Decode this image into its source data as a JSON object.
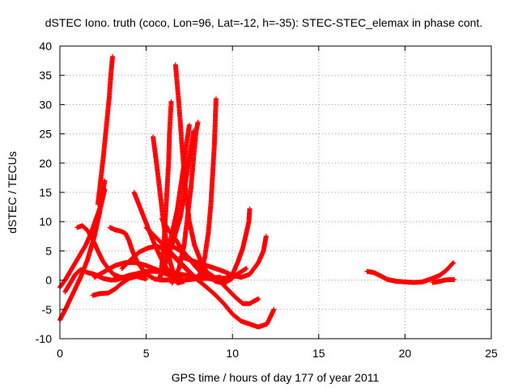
{
  "chart_data": {
    "type": "scatter",
    "title": "dSTEC Iono. truth (coco, Lon=96, Lat=-12, h=-35): STEC-STEC_elemax in phase cont.",
    "xlabel": "GPS time / hours of day 177 of year 2011",
    "ylabel": "dSTEC  / TECUs",
    "xlim": [
      0,
      25
    ],
    "ylim": [
      -10,
      40
    ],
    "xticks": [
      0,
      5,
      10,
      15,
      20,
      25
    ],
    "yticks": [
      -10,
      -5,
      0,
      5,
      10,
      15,
      20,
      25,
      30,
      35,
      40
    ],
    "grid": true,
    "marker": "+",
    "color": "#ff0000",
    "series": [
      {
        "points": [
          [
            0.0,
            -6.8
          ],
          [
            0.4,
            -4.5
          ],
          [
            0.8,
            -2.0
          ],
          [
            1.2,
            0.5
          ],
          [
            1.6,
            3.5
          ],
          [
            2.0,
            7.5
          ],
          [
            2.3,
            11.5
          ],
          [
            2.6,
            17.0
          ]
        ]
      },
      {
        "points": [
          [
            2.2,
            13.0
          ],
          [
            2.4,
            18.0
          ],
          [
            2.55,
            22.0
          ],
          [
            2.7,
            26.5
          ],
          [
            2.85,
            31.0
          ],
          [
            2.95,
            35.0
          ],
          [
            3.05,
            38.2
          ]
        ]
      },
      {
        "points": [
          [
            0.0,
            -1.2
          ],
          [
            0.3,
            0.0
          ],
          [
            0.6,
            1.5
          ],
          [
            0.9,
            3.0
          ],
          [
            1.2,
            4.5
          ],
          [
            1.5,
            6.0
          ],
          [
            1.8,
            8.0
          ],
          [
            2.1,
            10.5
          ],
          [
            2.4,
            13.0
          ],
          [
            2.6,
            15.5
          ]
        ]
      },
      {
        "points": [
          [
            1.0,
            9.0
          ],
          [
            1.3,
            9.3
          ],
          [
            1.6,
            8.5
          ],
          [
            1.9,
            7.0
          ],
          [
            2.2,
            5.0
          ],
          [
            2.5,
            3.2
          ],
          [
            2.8,
            2.0
          ],
          [
            3.1,
            1.0
          ],
          [
            3.5,
            0.5
          ],
          [
            4.0,
            0.5
          ]
        ]
      },
      {
        "points": [
          [
            0.3,
            -2.0
          ],
          [
            0.6,
            -0.5
          ],
          [
            0.9,
            1.0
          ],
          [
            1.2,
            1.8
          ],
          [
            1.6,
            1.3
          ],
          [
            2.0,
            1.0
          ],
          [
            2.5,
            0.3
          ],
          [
            3.0,
            0.0
          ],
          [
            3.5,
            0.3
          ],
          [
            4.0,
            0.8
          ],
          [
            4.5,
            0.6
          ],
          [
            5.0,
            0.2
          ]
        ]
      },
      {
        "points": [
          [
            1.9,
            -2.6
          ],
          [
            2.3,
            -2.3
          ],
          [
            2.8,
            -2.2
          ],
          [
            3.2,
            -1.5
          ],
          [
            3.6,
            -0.5
          ],
          [
            4.0,
            0.3
          ],
          [
            4.5,
            0.7
          ],
          [
            5.0,
            0.8
          ]
        ]
      },
      {
        "points": [
          [
            2.0,
            0.5
          ],
          [
            2.6,
            1.5
          ],
          [
            3.2,
            2.5
          ],
          [
            3.8,
            3.0
          ],
          [
            4.4,
            3.0
          ],
          [
            5.0,
            2.5
          ],
          [
            5.6,
            1.8
          ],
          [
            6.2,
            1.0
          ],
          [
            6.8,
            0.5
          ]
        ]
      },
      {
        "points": [
          [
            2.9,
            9.0
          ],
          [
            3.2,
            8.6
          ],
          [
            3.5,
            8.4
          ],
          [
            3.8,
            8.0
          ],
          [
            4.0,
            6.8
          ],
          [
            4.2,
            5.0
          ],
          [
            4.5,
            3.0
          ],
          [
            5.0,
            1.0
          ],
          [
            5.5,
            0.2
          ],
          [
            6.0,
            0.0
          ],
          [
            7.0,
            0.2
          ]
        ]
      },
      {
        "points": [
          [
            4.3,
            15.0
          ],
          [
            4.7,
            12.0
          ],
          [
            5.1,
            9.0
          ],
          [
            5.5,
            6.0
          ],
          [
            5.9,
            3.5
          ],
          [
            6.3,
            1.5
          ],
          [
            6.7,
            0.5
          ],
          [
            7.2,
            0.0
          ],
          [
            7.8,
            0.2
          ],
          [
            8.5,
            0.3
          ],
          [
            9.3,
            0.5
          ]
        ]
      },
      {
        "points": [
          [
            3.6,
            2.0
          ],
          [
            4.1,
            3.5
          ],
          [
            4.6,
            4.8
          ],
          [
            5.1,
            5.5
          ],
          [
            5.6,
            5.8
          ],
          [
            6.1,
            5.3
          ],
          [
            6.6,
            4.0
          ],
          [
            7.1,
            2.5
          ],
          [
            7.6,
            1.0
          ]
        ]
      },
      {
        "points": [
          [
            5.4,
            24.5
          ],
          [
            5.6,
            20.0
          ],
          [
            5.8,
            15.0
          ],
          [
            6.0,
            10.0
          ],
          [
            6.2,
            6.0
          ],
          [
            6.4,
            3.0
          ],
          [
            6.6,
            1.0
          ],
          [
            6.8,
            -0.5
          ],
          [
            7.2,
            -0.2
          ]
        ]
      },
      {
        "points": [
          [
            5.8,
            0.0
          ],
          [
            6.0,
            5.0
          ],
          [
            6.1,
            10.0
          ],
          [
            6.2,
            15.0
          ],
          [
            6.3,
            20.0
          ],
          [
            6.35,
            25.0
          ],
          [
            6.45,
            30.5
          ]
        ]
      },
      {
        "points": [
          [
            5.9,
            10.5
          ],
          [
            6.3,
            8.5
          ],
          [
            6.7,
            7.0
          ],
          [
            7.0,
            5.5
          ],
          [
            7.4,
            4.0
          ],
          [
            7.8,
            2.5
          ],
          [
            8.2,
            1.2
          ],
          [
            8.6,
            0.3
          ],
          [
            9.1,
            0.0
          ]
        ]
      },
      {
        "points": [
          [
            6.7,
            36.8
          ],
          [
            6.9,
            30.0
          ],
          [
            7.1,
            22.0
          ],
          [
            7.3,
            15.0
          ],
          [
            7.5,
            10.0
          ],
          [
            7.8,
            6.0
          ],
          [
            8.2,
            3.0
          ],
          [
            8.6,
            1.0
          ],
          [
            9.0,
            -0.2
          ],
          [
            9.5,
            -0.5
          ],
          [
            10.0,
            0.3
          ]
        ]
      },
      {
        "points": [
          [
            5.8,
            0.5
          ],
          [
            6.2,
            3.5
          ],
          [
            6.6,
            7.0
          ],
          [
            7.0,
            11.0
          ],
          [
            7.2,
            15.0
          ],
          [
            7.4,
            19.0
          ],
          [
            7.6,
            22.5
          ],
          [
            7.75,
            25.5
          ]
        ]
      },
      {
        "points": [
          [
            6.5,
            -0.5
          ],
          [
            6.9,
            2.0
          ],
          [
            7.2,
            6.0
          ],
          [
            7.4,
            11.0
          ],
          [
            7.6,
            16.0
          ],
          [
            7.75,
            21.0
          ],
          [
            7.9,
            25.5
          ],
          [
            8.0,
            27.0
          ]
        ]
      },
      {
        "points": [
          [
            6.2,
            4.0
          ],
          [
            6.5,
            8.0
          ],
          [
            6.8,
            12.0
          ],
          [
            7.0,
            16.0
          ],
          [
            7.2,
            20.0
          ],
          [
            7.35,
            23.5
          ],
          [
            7.5,
            26.5
          ]
        ]
      },
      {
        "points": [
          [
            7.9,
            0.2
          ],
          [
            8.2,
            1.5
          ],
          [
            8.4,
            4.0
          ],
          [
            8.6,
            8.0
          ],
          [
            8.75,
            13.0
          ],
          [
            8.85,
            18.0
          ],
          [
            8.95,
            23.0
          ],
          [
            9.0,
            27.0
          ],
          [
            9.05,
            31.0
          ]
        ]
      },
      {
        "points": [
          [
            7.0,
            4.0
          ],
          [
            7.5,
            3.5
          ],
          [
            8.0,
            3.0
          ],
          [
            8.5,
            2.5
          ],
          [
            9.0,
            2.0
          ],
          [
            9.5,
            1.5
          ],
          [
            10.0,
            0.8
          ],
          [
            10.5,
            0.5
          ],
          [
            11.0,
            1.0
          ],
          [
            11.5,
            3.0
          ],
          [
            11.8,
            5.0
          ],
          [
            11.95,
            7.5
          ]
        ]
      },
      {
        "points": [
          [
            8.4,
            0.6
          ],
          [
            9.0,
            0.0
          ],
          [
            9.6,
            -0.5
          ],
          [
            10.0,
            1.0
          ],
          [
            10.3,
            3.0
          ],
          [
            10.6,
            5.5
          ],
          [
            10.8,
            8.0
          ],
          [
            10.95,
            10.0
          ],
          [
            11.0,
            12.2
          ]
        ]
      },
      {
        "points": [
          [
            3.2,
            0.0
          ],
          [
            4.0,
            0.8
          ],
          [
            5.0,
            1.5
          ],
          [
            6.0,
            1.5
          ],
          [
            7.0,
            1.0
          ],
          [
            8.0,
            0.5
          ],
          [
            9.0,
            0.2
          ],
          [
            10.0,
            0.5
          ],
          [
            10.8,
            2.0
          ]
        ]
      },
      {
        "points": [
          [
            6.4,
            6.0
          ],
          [
            7.0,
            5.0
          ],
          [
            7.6,
            3.5
          ],
          [
            8.2,
            2.0
          ],
          [
            8.8,
            0.8
          ],
          [
            9.2,
            0.0
          ],
          [
            9.7,
            -1.5
          ],
          [
            10.2,
            -3.0
          ],
          [
            10.6,
            -4.0
          ],
          [
            11.0,
            -4.0
          ],
          [
            11.3,
            -3.5
          ],
          [
            11.5,
            -3.2
          ]
        ]
      },
      {
        "points": [
          [
            5.0,
            9.0
          ],
          [
            5.5,
            7.5
          ],
          [
            6.0,
            6.0
          ],
          [
            6.5,
            4.5
          ],
          [
            7.0,
            3.0
          ],
          [
            7.5,
            1.5
          ],
          [
            8.0,
            0.0
          ],
          [
            8.5,
            -1.2
          ],
          [
            9.0,
            -2.5
          ],
          [
            9.5,
            -4.0
          ],
          [
            10.0,
            -5.8
          ],
          [
            10.5,
            -7.0
          ],
          [
            11.0,
            -7.5
          ],
          [
            11.5,
            -8.0
          ],
          [
            12.0,
            -7.5
          ],
          [
            12.4,
            -5.0
          ]
        ]
      },
      {
        "points": [
          [
            17.8,
            1.5
          ],
          [
            18.2,
            1.3
          ],
          [
            18.6,
            0.7
          ],
          [
            19.0,
            0.1
          ],
          [
            19.5,
            -0.2
          ],
          [
            20.0,
            -0.3
          ],
          [
            20.5,
            -0.4
          ],
          [
            21.0,
            -0.3
          ],
          [
            21.5,
            0.2
          ],
          [
            22.0,
            0.8
          ],
          [
            22.4,
            1.7
          ],
          [
            22.8,
            3.0
          ]
        ]
      },
      {
        "points": [
          [
            21.6,
            -0.4
          ],
          [
            22.0,
            -0.2
          ],
          [
            22.3,
            0.0
          ],
          [
            22.6,
            0.1
          ],
          [
            22.85,
            0.1
          ]
        ]
      }
    ]
  }
}
